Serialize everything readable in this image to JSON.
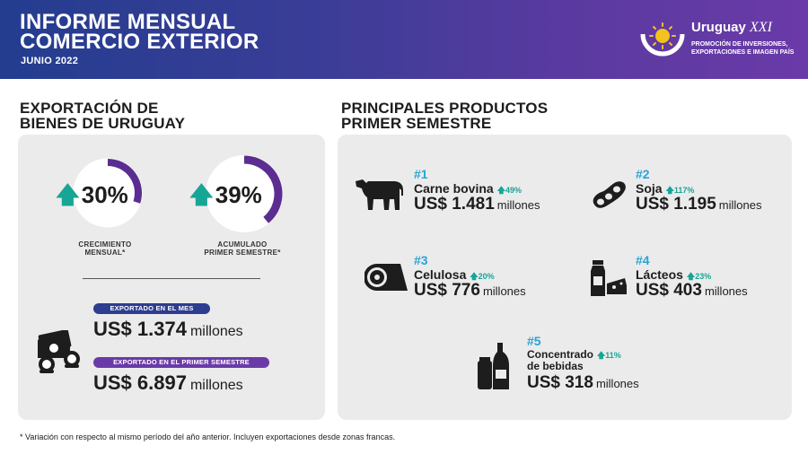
{
  "header": {
    "title_line1": "INFORME MENSUAL",
    "title_line2": "COMERCIO EXTERIOR",
    "subtitle": "JUNIO 2022",
    "logo_name": "Uruguay",
    "logo_name_suffix": "XXI",
    "logo_tag_line1": "PROMOCIÓN DE INVERSIONES,",
    "logo_tag_line2": "EXPORTACIONES E IMAGEN PAÍS"
  },
  "left": {
    "title_line1": "EXPORTACIÓN DE",
    "title_line2": "BIENES DE URUGUAY",
    "kpis": [
      {
        "value": "30%",
        "fill_fraction": 0.3,
        "label_line1": "CRECIMIENTO",
        "label_line2": "MENSUAL*"
      },
      {
        "value": "39%",
        "fill_fraction": 0.39,
        "label_line1": "ACUMULADO",
        "label_line2": "PRIMER SEMESTRE*"
      }
    ],
    "monthly": {
      "badge": "EXPORTADO EN EL MES",
      "amount": "US$ 1.374",
      "unit": "millones"
    },
    "semester": {
      "badge": "EXPORTADO EN EL PRIMER SEMESTRE",
      "amount": "US$ 6.897",
      "unit": "millones"
    }
  },
  "right": {
    "title_line1": "PRINCIPALES PRODUCTOS",
    "title_line2": "PRIMER SEMESTRE",
    "products": [
      {
        "rank": "#1",
        "name": "Carne bovina",
        "change": "49%",
        "amount": "US$ 1.481",
        "unit": "millones",
        "icon": "cow-icon"
      },
      {
        "rank": "#2",
        "name": "Soja",
        "change": "117%",
        "amount": "US$ 1.195",
        "unit": "millones",
        "icon": "soybean-icon"
      },
      {
        "rank": "#3",
        "name": "Celulosa",
        "change": "20%",
        "amount": "US$ 776",
        "unit": "millones",
        "icon": "paper-roll-icon"
      },
      {
        "rank": "#4",
        "name": "Lácteos",
        "change": "23%",
        "amount": "US$ 403",
        "unit": "millones",
        "icon": "dairy-icon"
      },
      {
        "rank": "#5",
        "name_line1": "Concentrado",
        "name_line2": "de bebidas",
        "change": "11%",
        "amount": "US$ 318",
        "unit": "millones",
        "icon": "beverage-icon"
      }
    ]
  },
  "footnote": "* Variación con respecto al mismo período del año anterior. Incluyen exportaciones desde zonas francas.",
  "colors": {
    "header_blue": "#233d8f",
    "header_purple": "#6a3aa8",
    "accent_teal": "#17a596",
    "rank_blue": "#2aa3d6",
    "ring_purple": "#5b2d91"
  }
}
